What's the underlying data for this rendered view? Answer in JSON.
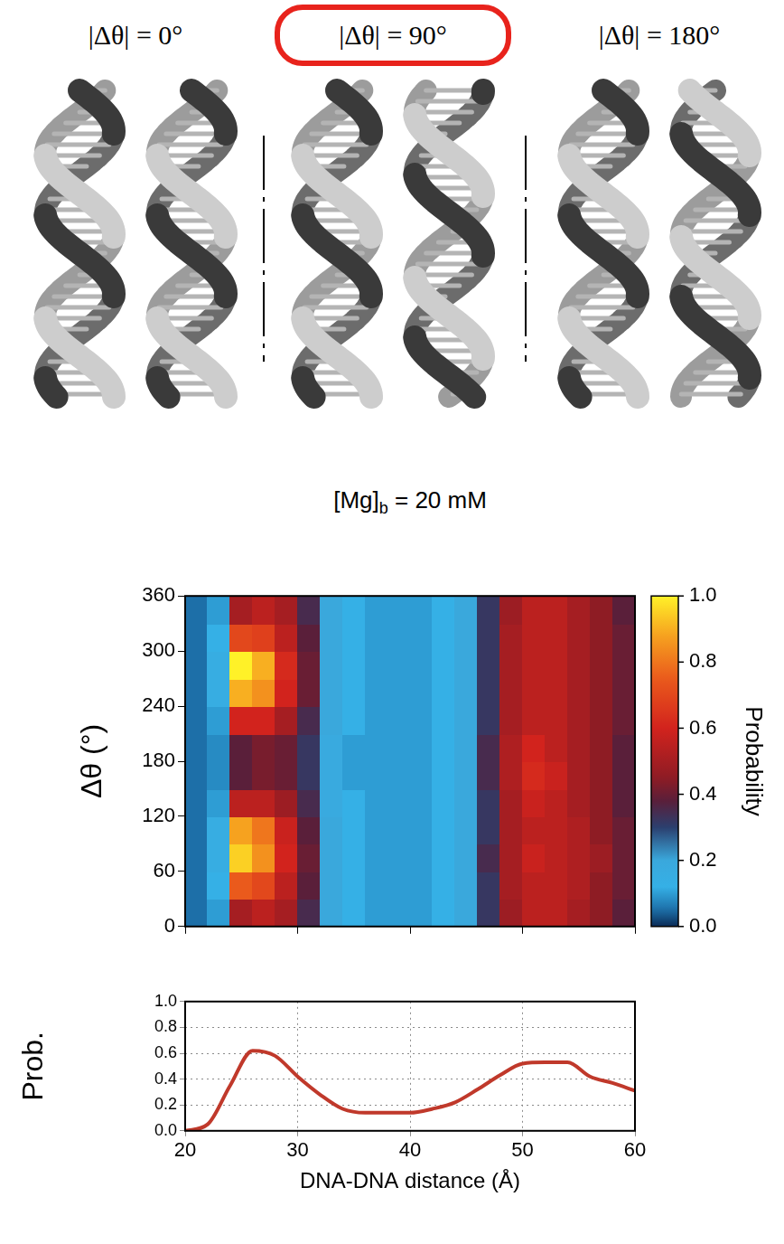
{
  "diagram": {
    "panels": [
      {
        "label": "|Δθ| = 0°",
        "delta_theta": 0
      },
      {
        "label": "|Δθ| = 90°",
        "delta_theta": 90,
        "highlighted": true
      },
      {
        "label": "|Δθ| = 180°",
        "delta_theta": 180
      }
    ]
  },
  "chart_data": [
    {
      "type": "heatmap",
      "title": [
        {
          "text": "[Mg]"
        },
        {
          "text": "b",
          "subscript": true
        },
        {
          "text": " = 20 mM"
        }
      ],
      "y_label": "Δθ (°)",
      "x_bins": [
        20,
        22,
        24,
        26,
        28,
        30,
        32,
        34,
        36,
        38,
        40,
        42,
        44,
        46,
        48,
        50,
        52,
        54,
        56,
        58,
        60
      ],
      "y_bins": [
        0,
        30,
        60,
        90,
        120,
        150,
        180,
        210,
        240,
        270,
        300,
        330,
        360
      ],
      "cells": [
        [
          0.05,
          0.1,
          0.5,
          0.55,
          0.5,
          0.35,
          0.2,
          0.12,
          0.1,
          0.1,
          0.1,
          0.12,
          0.2,
          0.32,
          0.48,
          0.55,
          0.55,
          0.5,
          0.45,
          0.38
        ],
        [
          0.05,
          0.12,
          0.75,
          0.7,
          0.55,
          0.38,
          0.2,
          0.12,
          0.1,
          0.1,
          0.1,
          0.12,
          0.2,
          0.32,
          0.5,
          0.55,
          0.55,
          0.52,
          0.45,
          0.4
        ],
        [
          0.05,
          0.15,
          0.95,
          0.85,
          0.6,
          0.4,
          0.2,
          0.12,
          0.1,
          0.1,
          0.1,
          0.12,
          0.2,
          0.35,
          0.5,
          0.58,
          0.55,
          0.52,
          0.48,
          0.4
        ],
        [
          0.05,
          0.15,
          0.88,
          0.8,
          0.58,
          0.38,
          0.2,
          0.12,
          0.1,
          0.1,
          0.1,
          0.12,
          0.2,
          0.32,
          0.5,
          0.55,
          0.55,
          0.52,
          0.45,
          0.4
        ],
        [
          0.05,
          0.1,
          0.55,
          0.55,
          0.48,
          0.35,
          0.18,
          0.12,
          0.1,
          0.1,
          0.1,
          0.12,
          0.2,
          0.32,
          0.5,
          0.58,
          0.55,
          0.5,
          0.45,
          0.38
        ],
        [
          0.05,
          0.08,
          0.38,
          0.42,
          0.4,
          0.32,
          0.18,
          0.1,
          0.1,
          0.1,
          0.1,
          0.12,
          0.2,
          0.35,
          0.52,
          0.62,
          0.58,
          0.5,
          0.45,
          0.38
        ],
        [
          0.05,
          0.08,
          0.38,
          0.42,
          0.4,
          0.32,
          0.18,
          0.1,
          0.1,
          0.1,
          0.1,
          0.12,
          0.2,
          0.35,
          0.52,
          0.6,
          0.55,
          0.5,
          0.45,
          0.38
        ],
        [
          0.05,
          0.1,
          0.6,
          0.6,
          0.5,
          0.35,
          0.2,
          0.12,
          0.1,
          0.1,
          0.1,
          0.12,
          0.2,
          0.32,
          0.5,
          0.55,
          0.55,
          0.5,
          0.45,
          0.4
        ],
        [
          0.05,
          0.15,
          0.9,
          0.85,
          0.6,
          0.4,
          0.2,
          0.12,
          0.1,
          0.1,
          0.1,
          0.12,
          0.2,
          0.32,
          0.5,
          0.55,
          0.55,
          0.5,
          0.45,
          0.4
        ],
        [
          0.05,
          0.15,
          1.0,
          0.9,
          0.62,
          0.4,
          0.2,
          0.12,
          0.1,
          0.1,
          0.1,
          0.12,
          0.2,
          0.32,
          0.5,
          0.55,
          0.55,
          0.5,
          0.45,
          0.4
        ],
        [
          0.05,
          0.12,
          0.7,
          0.68,
          0.55,
          0.38,
          0.2,
          0.12,
          0.1,
          0.1,
          0.1,
          0.12,
          0.2,
          0.32,
          0.5,
          0.55,
          0.55,
          0.5,
          0.45,
          0.4
        ],
        [
          0.05,
          0.1,
          0.5,
          0.55,
          0.5,
          0.35,
          0.2,
          0.12,
          0.1,
          0.1,
          0.1,
          0.12,
          0.2,
          0.32,
          0.48,
          0.55,
          0.55,
          0.5,
          0.45,
          0.38
        ]
      ],
      "xlim": [
        20,
        60
      ],
      "ylim": [
        0,
        360
      ],
      "xticks": [
        20,
        30,
        40,
        50,
        60
      ],
      "yticks": [
        0,
        60,
        120,
        180,
        240,
        300,
        360
      ],
      "tick_labels": "y",
      "colorbar": {
        "label": "Probability",
        "range": [
          0,
          1
        ],
        "ticks": [
          {
            "value": 0,
            "label": "0.0"
          },
          0.2,
          0.4,
          0.6,
          0.8,
          {
            "value": 1,
            "label": "1.0"
          }
        ]
      }
    },
    {
      "type": "line",
      "y_label": "Prob.",
      "x_label": "DNA-DNA distance (Å)",
      "x": [
        20,
        22,
        24,
        26,
        28,
        30,
        32,
        34,
        36,
        38,
        40,
        42,
        44,
        46,
        48,
        50,
        52,
        54,
        56,
        58,
        60
      ],
      "values": [
        0.0,
        0.05,
        0.35,
        0.62,
        0.58,
        0.42,
        0.28,
        0.17,
        0.14,
        0.14,
        0.14,
        0.17,
        0.22,
        0.32,
        0.43,
        0.52,
        0.53,
        0.53,
        0.42,
        0.37,
        0.31
      ],
      "color": "#c0392b",
      "xlim": [
        20,
        60
      ],
      "ylim": [
        0,
        1
      ],
      "xticks": [
        20,
        30,
        40,
        50,
        60
      ],
      "yticks": [
        {
          "value": 0,
          "label": "0.0"
        },
        0.2,
        0.4,
        0.6,
        0.8,
        {
          "value": 1,
          "label": "1.0"
        }
      ],
      "grid": true
    }
  ]
}
